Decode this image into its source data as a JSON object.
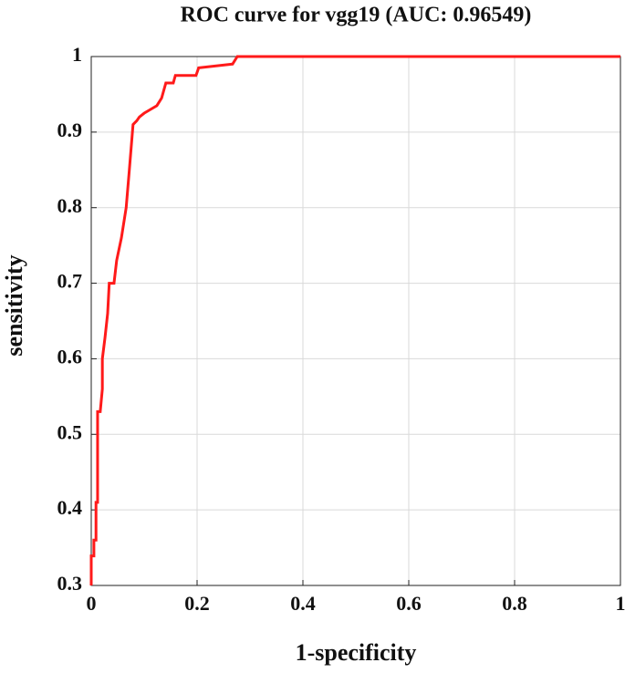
{
  "chart_data": {
    "type": "line",
    "title": "ROC curve for vgg19 (AUC: 0.96549)",
    "x_label": "1-specificity",
    "y_label": "sensitivity",
    "xlim": [
      0,
      1
    ],
    "ylim": [
      0.3,
      1
    ],
    "xticks": [
      0,
      0.2,
      0.4,
      0.6,
      0.8,
      1
    ],
    "yticks": [
      0.3,
      0.4,
      0.5,
      0.6,
      0.7,
      0.8,
      0.9,
      1
    ],
    "grid": true,
    "x": [
      0,
      0,
      0.005,
      0.005,
      0.009,
      0.009,
      0.012,
      0.012,
      0.017,
      0.021,
      0.021,
      0.026,
      0.031,
      0.034,
      0.043,
      0.048,
      0.057,
      0.066,
      0.072,
      0.079,
      0.086,
      0.091,
      0.1,
      0.112,
      0.124,
      0.133,
      0.141,
      0.155,
      0.159,
      0.198,
      0.203,
      0.267,
      0.276,
      1
    ],
    "series": [
      {
        "name": "ROC",
        "color": "#ff1a1a",
        "values": [
          0.3,
          0.339,
          0.339,
          0.36,
          0.36,
          0.41,
          0.41,
          0.53,
          0.53,
          0.56,
          0.6,
          0.628,
          0.66,
          0.7,
          0.7,
          0.73,
          0.76,
          0.8,
          0.85,
          0.91,
          0.915,
          0.92,
          0.925,
          0.93,
          0.935,
          0.945,
          0.965,
          0.965,
          0.975,
          0.975,
          0.985,
          0.99,
          1,
          1
        ]
      }
    ]
  }
}
